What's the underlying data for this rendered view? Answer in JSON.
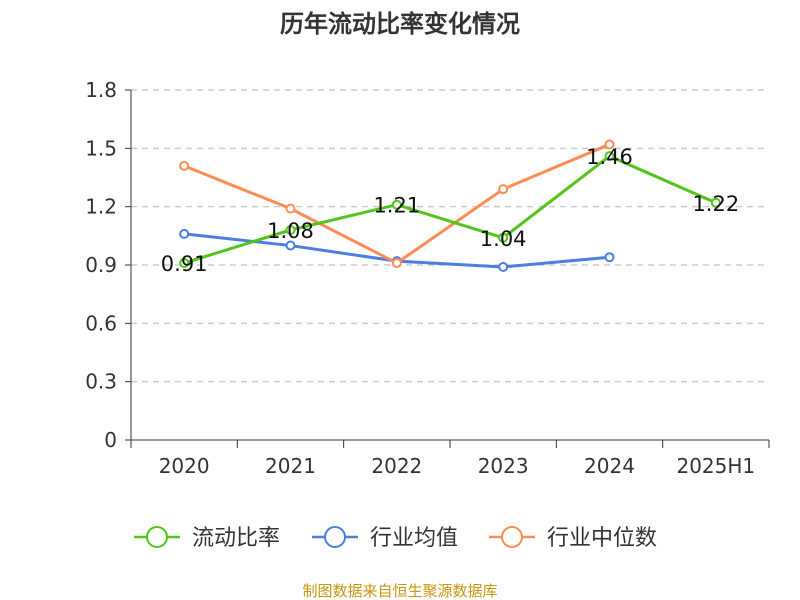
{
  "chart_data": {
    "type": "line",
    "title": "历年流动比率变化情况",
    "categories": [
      "2020",
      "2021",
      "2022",
      "2023",
      "2024",
      "2025H1"
    ],
    "ylim": [
      0,
      1.8
    ],
    "yticks": [
      "0",
      "0.3",
      "0.6",
      "0.9",
      "1.2",
      "1.5",
      "1.8"
    ],
    "grid": true,
    "legend_position": "bottom",
    "series": [
      {
        "name": "流动比率",
        "color": "#52c41a",
        "values": [
          0.91,
          1.08,
          1.21,
          1.04,
          1.46,
          1.22
        ],
        "labels": [
          "0.91",
          "1.08",
          "1.21",
          "1.04",
          "1.46",
          "1.22"
        ]
      },
      {
        "name": "行业均值",
        "color": "#4a7fe0",
        "values": [
          1.06,
          1.0,
          0.92,
          0.89,
          0.94,
          null
        ]
      },
      {
        "name": "行业中位数",
        "color": "#ff8c55",
        "values": [
          1.41,
          1.19,
          0.91,
          1.29,
          1.52,
          null
        ]
      }
    ]
  },
  "source": "制图数据来自恒生聚源数据库"
}
